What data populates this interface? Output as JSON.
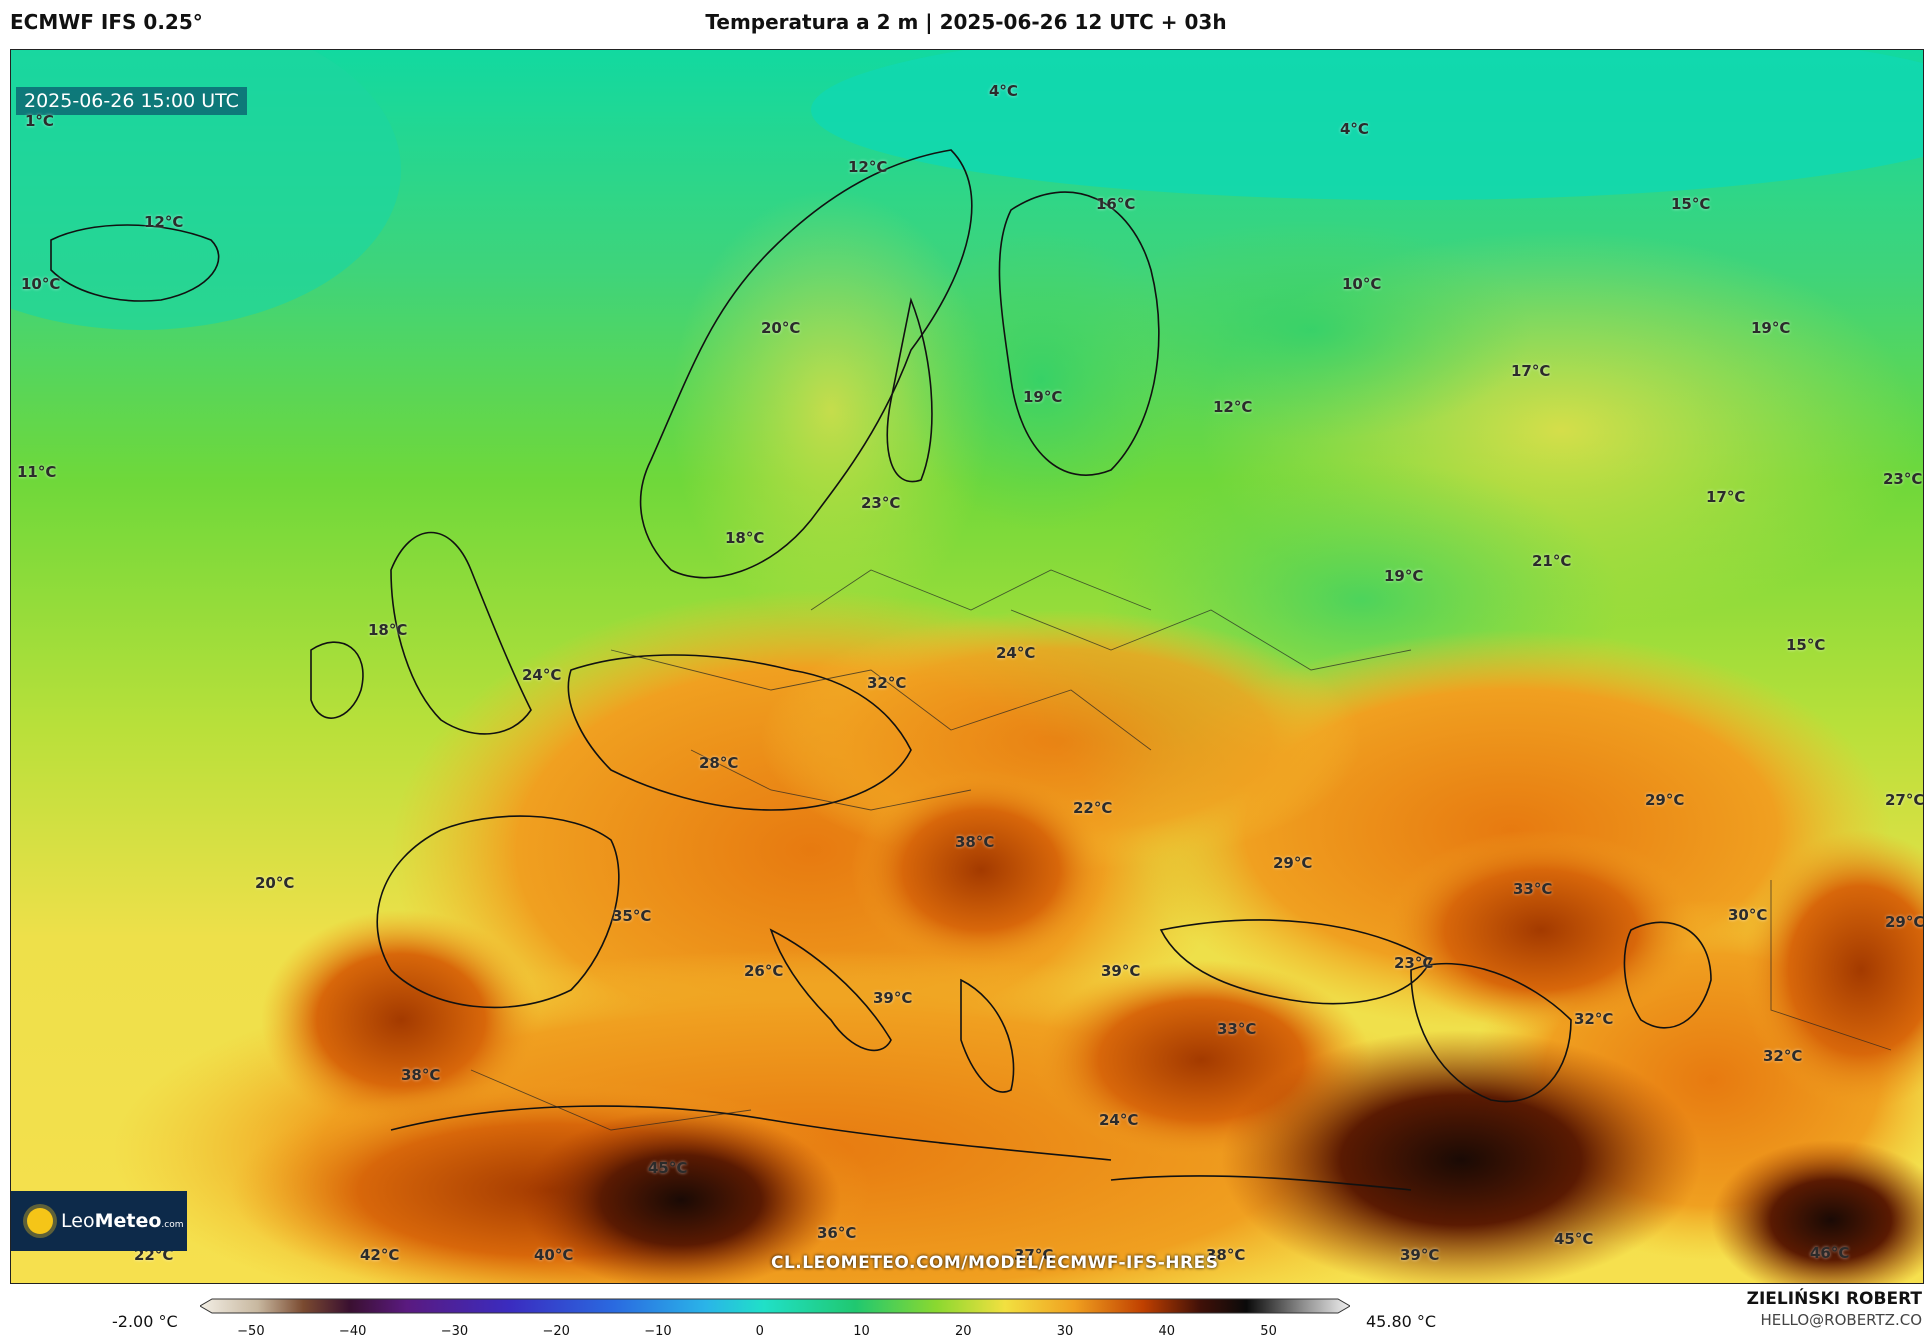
{
  "header": {
    "model": "ECMWF IFS 0.25°",
    "title": "Temperatura a 2 m | 2025-06-26 12 UTC + 03h"
  },
  "map": {
    "timestamp": "2025-06-26 15:00 UTC",
    "labels": [
      {
        "text": "1°C"
      },
      {
        "text": "4°C"
      },
      {
        "text": "4°C"
      },
      {
        "text": "12°C"
      },
      {
        "text": "12°C"
      },
      {
        "text": "16°C"
      },
      {
        "text": "15°C"
      },
      {
        "text": "10°C"
      },
      {
        "text": "10°C"
      },
      {
        "text": "20°C"
      },
      {
        "text": "19°C"
      },
      {
        "text": "19°C"
      },
      {
        "text": "17°C"
      },
      {
        "text": "12°C"
      },
      {
        "text": "11°C"
      },
      {
        "text": "23°C"
      },
      {
        "text": "17°C"
      },
      {
        "text": "23°C"
      },
      {
        "text": "18°C"
      },
      {
        "text": "21°C"
      },
      {
        "text": "19°C"
      },
      {
        "text": "18°C"
      },
      {
        "text": "15°C"
      },
      {
        "text": "24°C"
      },
      {
        "text": "24°C"
      },
      {
        "text": "32°C"
      },
      {
        "text": "28°C"
      },
      {
        "text": "29°C"
      },
      {
        "text": "27°C"
      },
      {
        "text": "22°C"
      },
      {
        "text": "38°C"
      },
      {
        "text": "29°C"
      },
      {
        "text": "20°C"
      },
      {
        "text": "33°C"
      },
      {
        "text": "30°C"
      },
      {
        "text": "35°C"
      },
      {
        "text": "29°C"
      },
      {
        "text": "23°C"
      },
      {
        "text": "26°C"
      },
      {
        "text": "39°C"
      },
      {
        "text": "39°C"
      },
      {
        "text": "32°C"
      },
      {
        "text": "33°C"
      },
      {
        "text": "32°C"
      },
      {
        "text": "38°C"
      },
      {
        "text": "24°C"
      },
      {
        "text": "45°C"
      },
      {
        "text": "36°C"
      },
      {
        "text": "45°C"
      },
      {
        "text": "46°C"
      },
      {
        "text": "22°C"
      },
      {
        "text": "42°C"
      },
      {
        "text": "40°C"
      },
      {
        "text": "37°C"
      },
      {
        "text": "38°C"
      },
      {
        "text": "39°C"
      }
    ],
    "source_url": "CL.LEOMETEO.COM/MODEL/ECMWF-IFS-HRES",
    "logo": {
      "brand_a": "Leo",
      "brand_b": "Meteo",
      "suffix": ".com"
    }
  },
  "colorbar": {
    "min_label": "-2.00 °C",
    "max_label": "45.80 °C",
    "ticks": [
      "−50",
      "−40",
      "−30",
      "−20",
      "−10",
      "0",
      "10",
      "20",
      "30",
      "40",
      "50"
    ],
    "range": [
      -55,
      58
    ]
  },
  "author": {
    "name": "ZIELIŃSKI ROBERT",
    "email": "HELLO@ROBERTZ.CO"
  }
}
